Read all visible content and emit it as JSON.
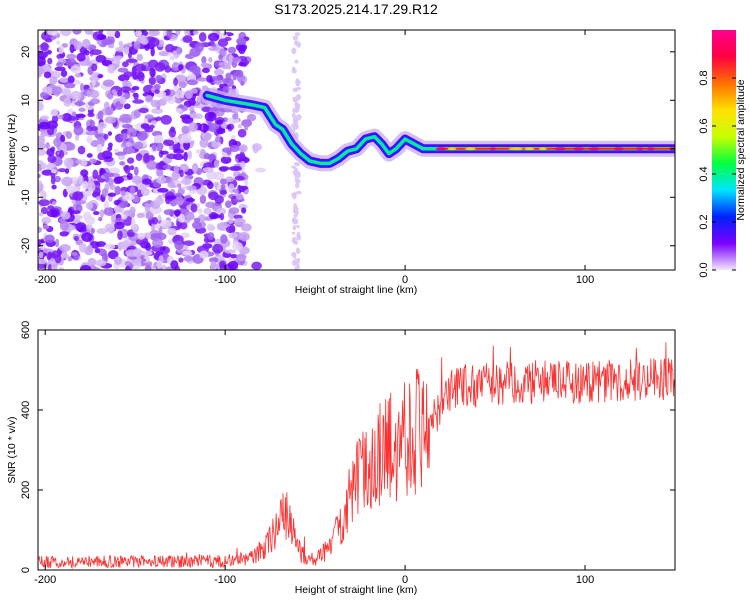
{
  "title": "S173.2025.214.17.29.R12",
  "chart_data": [
    {
      "type": "heatmap",
      "xlabel": "Height of straight line (km)",
      "ylabel": "Frequency (Hz)",
      "xlim": [
        -204,
        150
      ],
      "ylim": [
        -25,
        24.5
      ],
      "xticks": [
        -200,
        -100,
        0,
        100
      ],
      "yticks": [
        -20,
        -10,
        0,
        10,
        20
      ],
      "colorbar": {
        "label": "Normalized spectral amplitude",
        "range": [
          0,
          1
        ],
        "ticks": [
          0.0,
          0.2,
          0.4,
          0.6,
          0.8
        ],
        "colors": [
          "#f2e6fb",
          "#7a00ff",
          "#0022ff",
          "#00e5ff",
          "#00ff40",
          "#c8ff00",
          "#ffe000",
          "#ff7000",
          "#ff0040",
          "#ff0090"
        ]
      },
      "noise_region_km": [
        -204,
        -88
      ],
      "trace": [
        {
          "x": -110,
          "y": 11
        },
        {
          "x": -100,
          "y": 10
        },
        {
          "x": -92,
          "y": 9.5
        },
        {
          "x": -84,
          "y": 9
        },
        {
          "x": -78,
          "y": 8.5
        },
        {
          "x": -72,
          "y": 5
        },
        {
          "x": -68,
          "y": 4
        },
        {
          "x": -63,
          "y": 1
        },
        {
          "x": -58,
          "y": -1
        },
        {
          "x": -53,
          "y": -2.5
        },
        {
          "x": -47,
          "y": -3
        },
        {
          "x": -42,
          "y": -3
        },
        {
          "x": -37,
          "y": -2
        },
        {
          "x": -32,
          "y": -0.5
        },
        {
          "x": -27,
          "y": 0
        },
        {
          "x": -22,
          "y": 2
        },
        {
          "x": -17,
          "y": 2.5
        },
        {
          "x": -13,
          "y": 1
        },
        {
          "x": -9,
          "y": -1
        },
        {
          "x": -5,
          "y": 0
        },
        {
          "x": 0,
          "y": 2
        },
        {
          "x": 5,
          "y": 1
        },
        {
          "x": 10,
          "y": 0
        },
        {
          "x": 18,
          "y": 0
        },
        {
          "x": 150,
          "y": 0
        }
      ]
    },
    {
      "type": "line",
      "xlabel": "Height of straight line (km)",
      "ylabel": "SNR (10 * v/v)",
      "xlim": [
        -204,
        150
      ],
      "ylim": [
        0,
        600
      ],
      "xticks": [
        -200,
        -100,
        0,
        100
      ],
      "yticks": [
        0,
        200,
        400,
        600
      ],
      "series": [
        {
          "color": "#ff3030",
          "envelope": [
            {
              "x": -204,
              "y": 20
            },
            {
              "x": -100,
              "y": 22
            },
            {
              "x": -85,
              "y": 30
            },
            {
              "x": -78,
              "y": 55
            },
            {
              "x": -72,
              "y": 100
            },
            {
              "x": -68,
              "y": 150
            },
            {
              "x": -63,
              "y": 110
            },
            {
              "x": -58,
              "y": 40
            },
            {
              "x": -50,
              "y": 25
            },
            {
              "x": -42,
              "y": 55
            },
            {
              "x": -35,
              "y": 130
            },
            {
              "x": -28,
              "y": 210
            },
            {
              "x": -20,
              "y": 270
            },
            {
              "x": -10,
              "y": 300
            },
            {
              "x": 0,
              "y": 340
            },
            {
              "x": 10,
              "y": 360
            },
            {
              "x": 20,
              "y": 410
            },
            {
              "x": 30,
              "y": 460
            },
            {
              "x": 40,
              "y": 460
            },
            {
              "x": 60,
              "y": 470
            },
            {
              "x": 100,
              "y": 470
            },
            {
              "x": 150,
              "y": 480
            }
          ]
        }
      ]
    }
  ]
}
